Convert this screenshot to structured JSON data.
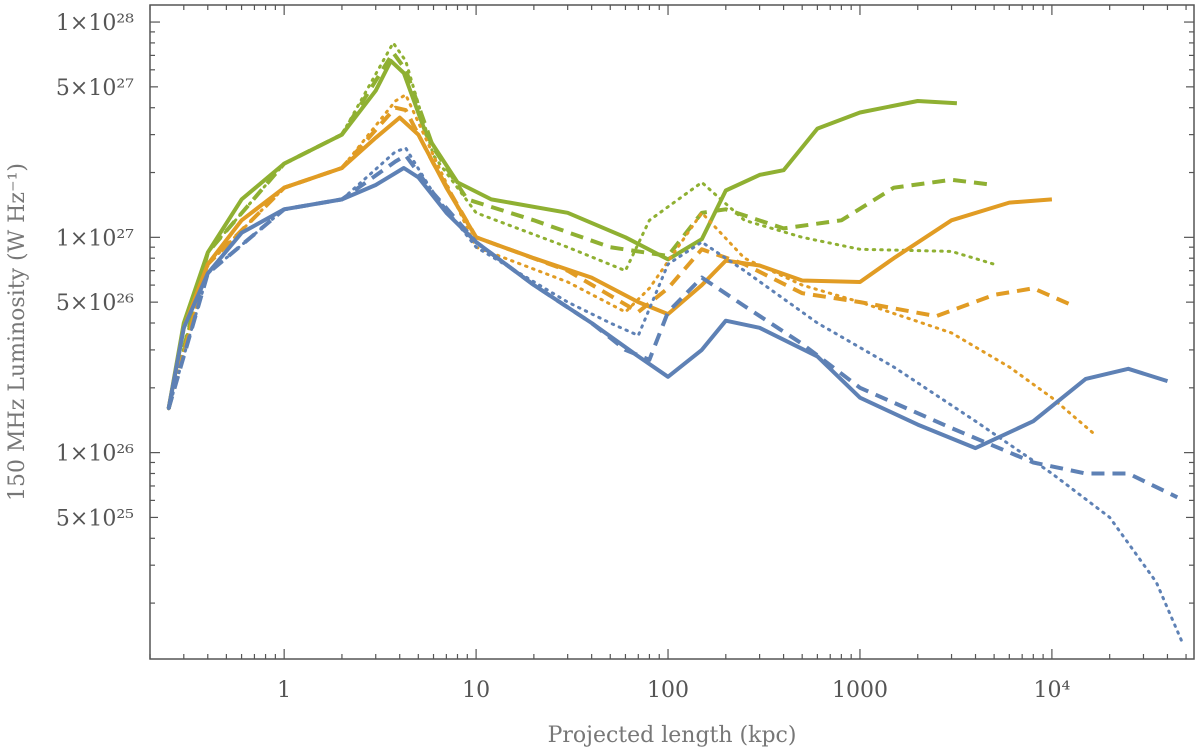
{
  "chart_data": {
    "type": "line",
    "title": "",
    "xlabel": "Projected length (kpc)",
    "ylabel": "150 MHz Luminosity (W Hz⁻¹)",
    "xscale": "log",
    "yscale": "log",
    "xlim": [
      0.2,
      55000
    ],
    "ylim": [
      1.1e+25,
      1.2e+28
    ],
    "x_ticks": [
      {
        "value": 1,
        "label": "1"
      },
      {
        "value": 10,
        "label": "10"
      },
      {
        "value": 100,
        "label": "100"
      },
      {
        "value": 1000,
        "label": "1000"
      },
      {
        "value": 10000,
        "label": "10⁴"
      }
    ],
    "y_ticks": [
      {
        "value": 5e+25,
        "label": "5×10²⁵"
      },
      {
        "value": 1e+26,
        "label": "1×10²⁶"
      },
      {
        "value": 5e+26,
        "label": "5×10²⁶"
      },
      {
        "value": 1e+27,
        "label": "1×10²⁷"
      },
      {
        "value": 5e+27,
        "label": "5×10²⁷"
      },
      {
        "value": 1e+28,
        "label": "1×10²⁸"
      }
    ],
    "grid": false,
    "legend": "none",
    "colors": {
      "blue": "#5e81b5",
      "orange": "#e19c24",
      "green": "#8fb032",
      "axis": "#555555",
      "text": "#555555"
    },
    "series": [
      {
        "name": "green-solid",
        "color": "green",
        "style": "solid",
        "points": [
          [
            0.25,
            1.6e+26
          ],
          [
            0.3,
            4e+26
          ],
          [
            0.4,
            8.5e+26
          ],
          [
            0.6,
            1.5e+27
          ],
          [
            1,
            2.2e+27
          ],
          [
            2,
            3e+27
          ],
          [
            3,
            4.8e+27
          ],
          [
            3.6,
            6.6e+27
          ],
          [
            4.2,
            5.8e+27
          ],
          [
            5.5,
            3e+27
          ],
          [
            8,
            1.8e+27
          ],
          [
            12,
            1.5e+27
          ],
          [
            30,
            1.3e+27
          ],
          [
            60,
            1e+27
          ],
          [
            100,
            7.9e+26
          ],
          [
            150,
            9.8e+26
          ],
          [
            200,
            1.65e+27
          ],
          [
            300,
            1.95e+27
          ],
          [
            400,
            2.05e+27
          ],
          [
            600,
            3.2e+27
          ],
          [
            1000,
            3.8e+27
          ],
          [
            2000,
            4.3e+27
          ],
          [
            3200,
            4.2e+27
          ]
        ]
      },
      {
        "name": "green-dashed",
        "color": "green",
        "style": "dashed",
        "points": [
          [
            0.25,
            1.6e+26
          ],
          [
            0.4,
            8.5e+26
          ],
          [
            1,
            2.2e+27
          ],
          [
            2,
            3e+27
          ],
          [
            3.7,
            7.2e+27
          ],
          [
            4.3,
            6e+27
          ],
          [
            6,
            2.6e+27
          ],
          [
            9,
            1.5e+27
          ],
          [
            20,
            1.2e+27
          ],
          [
            50,
            9e+26
          ],
          [
            100,
            8.2e+26
          ],
          [
            150,
            1.3e+27
          ],
          [
            200,
            1.35e+27
          ],
          [
            400,
            1.1e+27
          ],
          [
            800,
            1.2e+27
          ],
          [
            1500,
            1.7e+27
          ],
          [
            3000,
            1.85e+27
          ],
          [
            5000,
            1.75e+27
          ]
        ]
      },
      {
        "name": "green-dotted",
        "color": "green",
        "style": "dotted",
        "points": [
          [
            0.25,
            1.6e+26
          ],
          [
            0.4,
            8.5e+26
          ],
          [
            1,
            2.2e+27
          ],
          [
            2,
            3e+27
          ],
          [
            3.7,
            8e+27
          ],
          [
            4.3,
            6.6e+27
          ],
          [
            6,
            2.4e+27
          ],
          [
            10,
            1.3e+27
          ],
          [
            30,
            9e+26
          ],
          [
            60,
            7e+26
          ],
          [
            80,
            1.2e+27
          ],
          [
            150,
            1.8e+27
          ],
          [
            250,
            1.2e+27
          ],
          [
            500,
            1e+27
          ],
          [
            1000,
            8.8e+26
          ],
          [
            3000,
            8.6e+26
          ],
          [
            5000,
            7.5e+26
          ]
        ]
      },
      {
        "name": "orange-solid",
        "color": "orange",
        "style": "solid",
        "points": [
          [
            0.25,
            1.6e+26
          ],
          [
            0.3,
            3.8e+26
          ],
          [
            0.4,
            7.5e+26
          ],
          [
            0.6,
            1.2e+27
          ],
          [
            1,
            1.7e+27
          ],
          [
            2,
            2.1e+27
          ],
          [
            3,
            2.9e+27
          ],
          [
            4,
            3.6e+27
          ],
          [
            5,
            3e+27
          ],
          [
            7,
            1.7e+27
          ],
          [
            10,
            1e+27
          ],
          [
            20,
            8e+26
          ],
          [
            40,
            6.5e+26
          ],
          [
            70,
            5e+26
          ],
          [
            100,
            4.4e+26
          ],
          [
            150,
            6e+26
          ],
          [
            200,
            7.8e+26
          ],
          [
            300,
            7.4e+26
          ],
          [
            500,
            6.3e+26
          ],
          [
            1000,
            6.2e+26
          ],
          [
            1500,
            8e+26
          ],
          [
            3000,
            1.2e+27
          ],
          [
            6000,
            1.45e+27
          ],
          [
            10000,
            1.5e+27
          ]
        ]
      },
      {
        "name": "orange-dashed",
        "color": "orange",
        "style": "dashed",
        "points": [
          [
            0.25,
            1.6e+26
          ],
          [
            0.4,
            7.5e+26
          ],
          [
            1,
            1.7e+27
          ],
          [
            2,
            2.1e+27
          ],
          [
            3.8,
            4e+27
          ],
          [
            4.3,
            3.9e+27
          ],
          [
            6,
            2.2e+27
          ],
          [
            10,
            1e+27
          ],
          [
            30,
            7e+26
          ],
          [
            70,
            4.5e+26
          ],
          [
            100,
            5.8e+26
          ],
          [
            150,
            8.8e+26
          ],
          [
            250,
            7.5e+26
          ],
          [
            500,
            5.5e+26
          ],
          [
            1000,
            5e+26
          ],
          [
            2500,
            4.3e+26
          ],
          [
            5000,
            5.4e+26
          ],
          [
            8000,
            5.8e+26
          ],
          [
            13000,
            4.8e+26
          ]
        ]
      },
      {
        "name": "orange-dotted",
        "color": "orange",
        "style": "dotted",
        "points": [
          [
            0.25,
            1.6e+26
          ],
          [
            0.4,
            7.5e+26
          ],
          [
            1,
            1.7e+27
          ],
          [
            2,
            2.1e+27
          ],
          [
            3.8,
            4.3e+27
          ],
          [
            4.3,
            4.6e+27
          ],
          [
            6,
            2.4e+27
          ],
          [
            10,
            9e+26
          ],
          [
            30,
            6.2e+26
          ],
          [
            60,
            4.5e+26
          ],
          [
            80,
            5.8e+26
          ],
          [
            150,
            1.3e+27
          ],
          [
            250,
            8e+26
          ],
          [
            500,
            6e+26
          ],
          [
            1000,
            5e+26
          ],
          [
            3000,
            3.6e+26
          ],
          [
            6000,
            2.5e+26
          ],
          [
            10000,
            1.8e+26
          ],
          [
            17000,
            1.2e+26
          ]
        ]
      },
      {
        "name": "blue-solid",
        "color": "blue",
        "style": "solid",
        "points": [
          [
            0.25,
            1.6e+26
          ],
          [
            0.3,
            3.8e+26
          ],
          [
            0.4,
            6.8e+26
          ],
          [
            0.6,
            1.05e+27
          ],
          [
            1,
            1.35e+27
          ],
          [
            2,
            1.5e+27
          ],
          [
            3,
            1.75e+27
          ],
          [
            4.2,
            2.1e+27
          ],
          [
            5,
            1.9e+27
          ],
          [
            7,
            1.3e+27
          ],
          [
            10,
            9.5e+26
          ],
          [
            20,
            6e+26
          ],
          [
            40,
            4e+26
          ],
          [
            70,
            2.8e+26
          ],
          [
            100,
            2.25e+26
          ],
          [
            150,
            3e+26
          ],
          [
            200,
            4.1e+26
          ],
          [
            300,
            3.8e+26
          ],
          [
            600,
            2.8e+26
          ],
          [
            1000,
            1.8e+26
          ],
          [
            2000,
            1.35e+26
          ],
          [
            4000,
            1.05e+26
          ],
          [
            8000,
            1.4e+26
          ],
          [
            15000,
            2.2e+26
          ],
          [
            25000,
            2.45e+26
          ],
          [
            40000,
            2.15e+26
          ]
        ]
      },
      {
        "name": "blue-dashed",
        "color": "blue",
        "style": "dashed",
        "points": [
          [
            0.25,
            1.6e+26
          ],
          [
            0.4,
            6.8e+26
          ],
          [
            1,
            1.35e+27
          ],
          [
            2,
            1.5e+27
          ],
          [
            3.8,
            2.25e+27
          ],
          [
            4.3,
            2.4e+27
          ],
          [
            6,
            1.6e+27
          ],
          [
            10,
            9.5e+26
          ],
          [
            20,
            6e+26
          ],
          [
            40,
            4e+26
          ],
          [
            60,
            3e+26
          ],
          [
            80,
            2.7e+26
          ],
          [
            100,
            4.5e+26
          ],
          [
            150,
            6.5e+26
          ],
          [
            250,
            4.8e+26
          ],
          [
            500,
            3.2e+26
          ],
          [
            1000,
            2e+26
          ],
          [
            3000,
            1.3e+26
          ],
          [
            8000,
            9e+25
          ],
          [
            15000,
            8e+25
          ],
          [
            25000,
            8e+25
          ],
          [
            45000,
            6.2e+25
          ]
        ]
      },
      {
        "name": "blue-dotted",
        "color": "blue",
        "style": "dotted",
        "points": [
          [
            0.25,
            1.6e+26
          ],
          [
            0.4,
            6.8e+26
          ],
          [
            1,
            1.35e+27
          ],
          [
            2,
            1.5e+27
          ],
          [
            3.8,
            2.5e+27
          ],
          [
            4.3,
            2.6e+27
          ],
          [
            6,
            1.6e+27
          ],
          [
            10,
            9e+26
          ],
          [
            30,
            5e+26
          ],
          [
            50,
            4e+26
          ],
          [
            70,
            3.5e+26
          ],
          [
            100,
            7.5e+26
          ],
          [
            150,
            9.5e+26
          ],
          [
            250,
            7e+26
          ],
          [
            600,
            4e+26
          ],
          [
            1500,
            2.5e+26
          ],
          [
            4000,
            1.4e+26
          ],
          [
            10000,
            8e+25
          ],
          [
            20000,
            5e+25
          ],
          [
            35000,
            2.5e+25
          ],
          [
            48000,
            1.3e+25
          ]
        ]
      }
    ]
  }
}
